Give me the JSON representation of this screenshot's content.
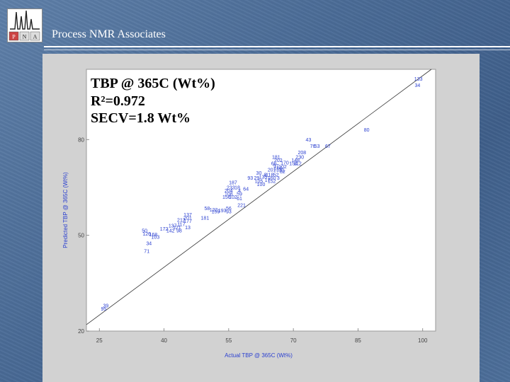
{
  "header": {
    "brand_text": "Process NMR Associates",
    "logo_letters": [
      "P",
      "N",
      "A"
    ]
  },
  "colors": {
    "background": "#4f709b",
    "panel": "#d2d2d2",
    "plot_area": "#ffffff",
    "points": "#2a3fd0",
    "annotation": "#000000"
  },
  "chart_data": {
    "type": "scatter",
    "title": "",
    "annotation_lines": [
      "TBP @ 365C (Wt%)",
      "R²=0.972",
      "SECV=1.8 Wt%"
    ],
    "xlabel": "Actual TBP @ 365C (Wt%)",
    "ylabel": "Predicted TBP @ 365C (Wt%)",
    "xlim": [
      22,
      103
    ],
    "ylim": [
      20,
      102
    ],
    "x_ticks": [
      25,
      40,
      55,
      70,
      85,
      100
    ],
    "y_ticks": [
      20,
      50,
      80
    ],
    "grid": false,
    "identity_line": true,
    "points": [
      {
        "x": 99,
        "y": 99,
        "label": "133"
      },
      {
        "x": 98.8,
        "y": 97,
        "label": "34"
      },
      {
        "x": 87,
        "y": 83,
        "label": "80"
      },
      {
        "x": 73.5,
        "y": 80,
        "label": "43"
      },
      {
        "x": 74.5,
        "y": 78,
        "label": "76"
      },
      {
        "x": 75.5,
        "y": 78,
        "label": "53"
      },
      {
        "x": 78,
        "y": 78,
        "label": "67"
      },
      {
        "x": 72,
        "y": 76,
        "label": "208"
      },
      {
        "x": 71.5,
        "y": 74.5,
        "label": "230"
      },
      {
        "x": 70.5,
        "y": 73.5,
        "label": "148"
      },
      {
        "x": 71,
        "y": 72.5,
        "label": "112"
      },
      {
        "x": 66,
        "y": 74.5,
        "label": "181"
      },
      {
        "x": 66.5,
        "y": 73.5,
        "label": "202"
      },
      {
        "x": 68,
        "y": 72.8,
        "label": "170"
      },
      {
        "x": 70,
        "y": 72.5,
        "label": "154"
      },
      {
        "x": 65.5,
        "y": 72.5,
        "label": "66"
      },
      {
        "x": 66,
        "y": 71.8,
        "label": "97"
      },
      {
        "x": 67.5,
        "y": 71.5,
        "label": "102"
      },
      {
        "x": 66.5,
        "y": 71,
        "label": "168"
      },
      {
        "x": 67,
        "y": 70.5,
        "label": "131"
      },
      {
        "x": 65,
        "y": 70.5,
        "label": "201"
      },
      {
        "x": 67.5,
        "y": 70,
        "label": "82"
      },
      {
        "x": 62,
        "y": 69.5,
        "label": "30"
      },
      {
        "x": 63.5,
        "y": 69,
        "label": "8"
      },
      {
        "x": 64.5,
        "y": 69,
        "label": "118"
      },
      {
        "x": 66,
        "y": 69,
        "label": "52"
      },
      {
        "x": 65,
        "y": 68,
        "label": "160"
      },
      {
        "x": 66.5,
        "y": 68,
        "label": "3"
      },
      {
        "x": 60,
        "y": 68,
        "label": "93"
      },
      {
        "x": 61.5,
        "y": 68,
        "label": "29"
      },
      {
        "x": 63,
        "y": 68.3,
        "label": "135"
      },
      {
        "x": 64,
        "y": 67.3,
        "label": "17"
      },
      {
        "x": 65,
        "y": 67,
        "label": "152"
      },
      {
        "x": 62,
        "y": 67,
        "label": "105"
      },
      {
        "x": 62.5,
        "y": 66,
        "label": "100"
      },
      {
        "x": 56,
        "y": 66.5,
        "label": "187"
      },
      {
        "x": 55.5,
        "y": 65,
        "label": "233"
      },
      {
        "x": 57,
        "y": 65,
        "label": "18"
      },
      {
        "x": 55,
        "y": 64,
        "label": "204"
      },
      {
        "x": 57.5,
        "y": 64,
        "label": "4"
      },
      {
        "x": 59,
        "y": 64.5,
        "label": "64"
      },
      {
        "x": 55,
        "y": 63,
        "label": "108"
      },
      {
        "x": 57.5,
        "y": 63,
        "label": "59"
      },
      {
        "x": 54.5,
        "y": 62,
        "label": "156"
      },
      {
        "x": 56,
        "y": 62,
        "label": "102"
      },
      {
        "x": 57.5,
        "y": 61.5,
        "label": "61"
      },
      {
        "x": 58,
        "y": 59.5,
        "label": "221"
      },
      {
        "x": 50,
        "y": 58.5,
        "label": "58"
      },
      {
        "x": 51.5,
        "y": 58,
        "label": "122"
      },
      {
        "x": 52,
        "y": 57.5,
        "label": "159"
      },
      {
        "x": 53.5,
        "y": 57.8,
        "label": "193"
      },
      {
        "x": 55,
        "y": 58.5,
        "label": "56"
      },
      {
        "x": 55,
        "y": 57.5,
        "label": "93"
      },
      {
        "x": 45.5,
        "y": 56.5,
        "label": "137"
      },
      {
        "x": 45.5,
        "y": 55.5,
        "label": "201"
      },
      {
        "x": 49.5,
        "y": 55.5,
        "label": "181"
      },
      {
        "x": 44,
        "y": 54.8,
        "label": "212"
      },
      {
        "x": 45.5,
        "y": 54.5,
        "label": "177"
      },
      {
        "x": 44,
        "y": 53.5,
        "label": "117"
      },
      {
        "x": 45.5,
        "y": 52.5,
        "label": "13"
      },
      {
        "x": 42,
        "y": 53,
        "label": "137"
      },
      {
        "x": 43,
        "y": 52.5,
        "label": "121"
      },
      {
        "x": 40,
        "y": 52,
        "label": "172"
      },
      {
        "x": 41.5,
        "y": 51.5,
        "label": "142"
      },
      {
        "x": 43.5,
        "y": 51.5,
        "label": "98"
      },
      {
        "x": 35.5,
        "y": 51.5,
        "label": "50"
      },
      {
        "x": 36,
        "y": 50.5,
        "label": "126"
      },
      {
        "x": 37.5,
        "y": 50.3,
        "label": "168"
      },
      {
        "x": 38,
        "y": 49.5,
        "label": "103"
      },
      {
        "x": 36.5,
        "y": 47.5,
        "label": "34"
      },
      {
        "x": 36,
        "y": 45,
        "label": "71"
      },
      {
        "x": 26.5,
        "y": 28,
        "label": "39"
      },
      {
        "x": 26,
        "y": 27,
        "label": "95"
      }
    ]
  }
}
